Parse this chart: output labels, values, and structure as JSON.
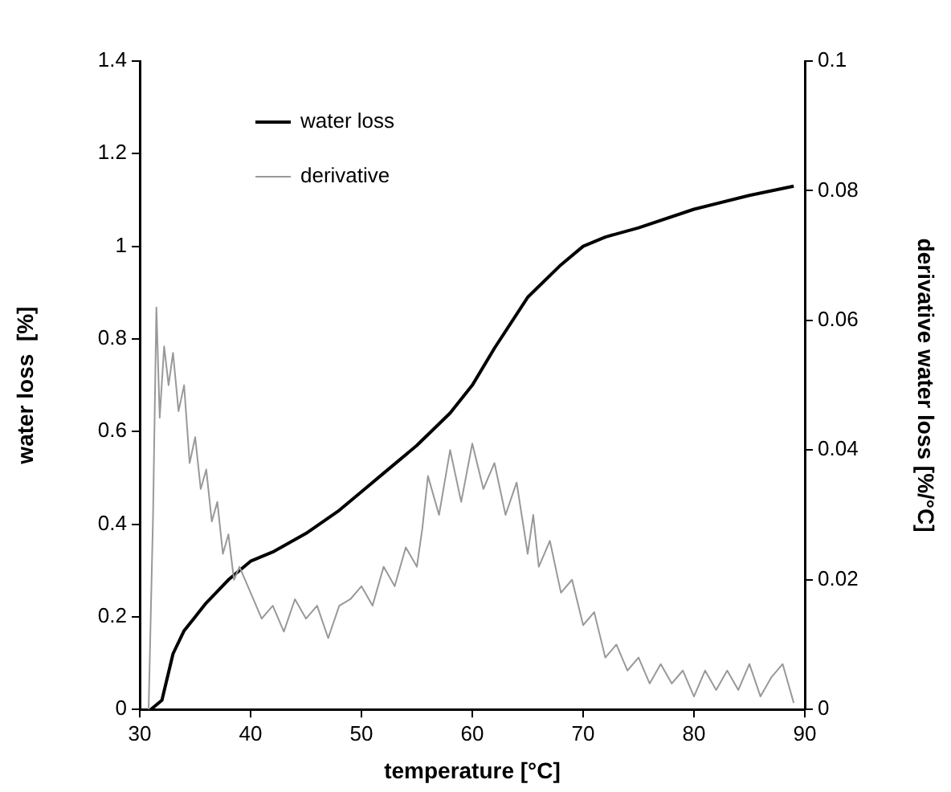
{
  "chart_data": {
    "type": "line",
    "xlabel": "temperature [°C]",
    "ylabel": "water loss  [%]",
    "y2label": "derivative water loss [%/°C]",
    "xlim": [
      30,
      90
    ],
    "xticks": [
      30,
      40,
      50,
      60,
      70,
      80,
      90
    ],
    "ylim": [
      0,
      1.4
    ],
    "yticks": [
      0,
      0.2,
      0.4,
      0.6,
      0.8,
      1,
      1.2,
      1.4
    ],
    "y2lim": [
      0,
      0.1
    ],
    "y2ticks": [
      0,
      0.02,
      0.04,
      0.06,
      0.08,
      0.1
    ],
    "legend": "top left",
    "grid": false,
    "marker": "none",
    "line_style": "solid",
    "series": [
      {
        "name": "water loss",
        "color": "#000000",
        "x": [
          31,
          32,
          33,
          34,
          35,
          36,
          38,
          40,
          42,
          45,
          48,
          50,
          52,
          55,
          58,
          60,
          62,
          65,
          68,
          70,
          72,
          75,
          80,
          85,
          89
        ],
        "values": [
          0,
          0.02,
          0.12,
          0.17,
          0.2,
          0.23,
          0.28,
          0.32,
          0.34,
          0.38,
          0.43,
          0.47,
          0.51,
          0.57,
          0.64,
          0.7,
          0.78,
          0.89,
          0.96,
          1,
          1.02,
          1.04,
          1.08,
          1.11,
          1.13
        ]
      },
      {
        "name": "derivative",
        "color": "#999999",
        "axis": "y2",
        "x": [
          30.8,
          31.2,
          31.5,
          31.8,
          32.2,
          32.6,
          33,
          33.5,
          34,
          34.5,
          35,
          35.5,
          36,
          36.5,
          37,
          37.5,
          38,
          38.5,
          39,
          40,
          41,
          42,
          43,
          44,
          45,
          46,
          47,
          48,
          49,
          50,
          51,
          52,
          53,
          54,
          55,
          55.5,
          56,
          57,
          58,
          59,
          60,
          61,
          62,
          63,
          64,
          65,
          65.5,
          66,
          67,
          68,
          69,
          70,
          71,
          72,
          73,
          74,
          75,
          76,
          77,
          78,
          79,
          80,
          81,
          82,
          83,
          84,
          85,
          86,
          87,
          88,
          89
        ],
        "values": [
          0,
          0.03,
          0.062,
          0.045,
          0.056,
          0.05,
          0.055,
          0.046,
          0.05,
          0.038,
          0.042,
          0.034,
          0.037,
          0.029,
          0.032,
          0.024,
          0.027,
          0.02,
          0.022,
          0.018,
          0.014,
          0.016,
          0.012,
          0.017,
          0.014,
          0.016,
          0.011,
          0.016,
          0.017,
          0.019,
          0.016,
          0.022,
          0.019,
          0.025,
          0.022,
          0.028,
          0.036,
          0.03,
          0.04,
          0.032,
          0.041,
          0.034,
          0.038,
          0.03,
          0.035,
          0.024,
          0.03,
          0.022,
          0.026,
          0.018,
          0.02,
          0.013,
          0.015,
          0.008,
          0.01,
          0.006,
          0.008,
          0.004,
          0.007,
          0.004,
          0.006,
          0.002,
          0.006,
          0.003,
          0.006,
          0.003,
          0.007,
          0.002,
          0.005,
          0.007,
          0.001
        ]
      }
    ]
  }
}
